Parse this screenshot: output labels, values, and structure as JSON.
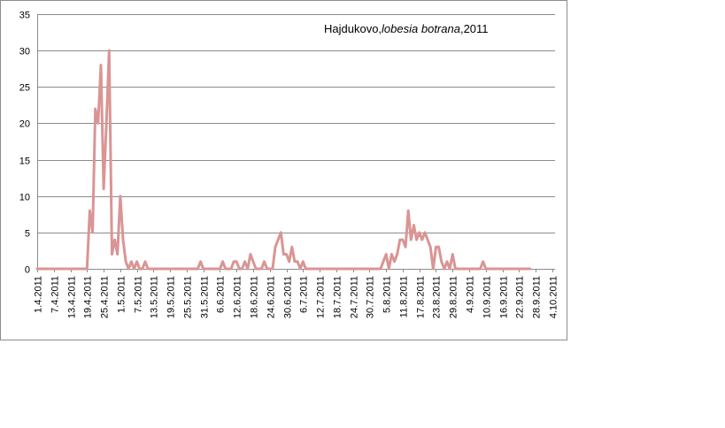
{
  "chart_data": {
    "type": "line",
    "title_parts": {
      "prefix": "Hajdukovo,",
      "species": "lobesia botrana",
      "suffix": ",2011"
    },
    "ylim": [
      0,
      35
    ],
    "y_ticks": [
      0,
      5,
      10,
      15,
      20,
      25,
      30,
      35
    ],
    "grid": "horizontal",
    "legend": "none",
    "line_color": "#d99594",
    "x_start": "1.4.2011",
    "x_end": "5.10.2011",
    "x_tick_labels": [
      "1.4.2011",
      "7.4.2011",
      "13.4.2011",
      "19.4.2011",
      "25.4.2011",
      "1.5.2011",
      "7.5.2011",
      "13.5.2011",
      "19.5.2011",
      "25.5.2011",
      "31.5.2011",
      "6.6.2011",
      "12.6.2011",
      "18.6.2011",
      "24.6.2011",
      "30.6.2011",
      "6.7.2011",
      "12.7.2011",
      "18.7.2011",
      "24.7.2011",
      "30.7.2011",
      "5.8.2011",
      "11.8.2011",
      "17.8.2011",
      "23.8.2011",
      "29.8.2011",
      "4.9.2011",
      "10.9.2011",
      "16.9.2011",
      "22.9.2011",
      "28.9.2011",
      "4.10.2011"
    ],
    "series": [
      {
        "points": [
          [
            "1.4.2011",
            0
          ],
          [
            "19.4.2011",
            0
          ],
          [
            "20.4.2011",
            8
          ],
          [
            "21.4.2011",
            5
          ],
          [
            "22.4.2011",
            22
          ],
          [
            "23.4.2011",
            20
          ],
          [
            "24.4.2011",
            28
          ],
          [
            "25.4.2011",
            11
          ],
          [
            "26.4.2011",
            20
          ],
          [
            "27.4.2011",
            30
          ],
          [
            "28.4.2011",
            2
          ],
          [
            "29.4.2011",
            4
          ],
          [
            "30.4.2011",
            2
          ],
          [
            "1.5.2011",
            10
          ],
          [
            "2.5.2011",
            4
          ],
          [
            "3.5.2011",
            1
          ],
          [
            "4.5.2011",
            0
          ],
          [
            "5.5.2011",
            1
          ],
          [
            "6.5.2011",
            0
          ],
          [
            "7.5.2011",
            1
          ],
          [
            "8.5.2011",
            0
          ],
          [
            "9.5.2011",
            0
          ],
          [
            "10.5.2011",
            1
          ],
          [
            "11.5.2011",
            0
          ],
          [
            "29.5.2011",
            0
          ],
          [
            "30.5.2011",
            1
          ],
          [
            "31.5.2011",
            0
          ],
          [
            "6.6.2011",
            0
          ],
          [
            "7.6.2011",
            1
          ],
          [
            "8.6.2011",
            0
          ],
          [
            "10.6.2011",
            0
          ],
          [
            "11.6.2011",
            1
          ],
          [
            "12.6.2011",
            1
          ],
          [
            "13.6.2011",
            0
          ],
          [
            "14.6.2011",
            0
          ],
          [
            "15.6.2011",
            1
          ],
          [
            "16.6.2011",
            0
          ],
          [
            "17.6.2011",
            2
          ],
          [
            "18.6.2011",
            1
          ],
          [
            "19.6.2011",
            0
          ],
          [
            "20.6.2011",
            0
          ],
          [
            "21.6.2011",
            0
          ],
          [
            "22.6.2011",
            1
          ],
          [
            "23.6.2011",
            0
          ],
          [
            "25.6.2011",
            0
          ],
          [
            "26.6.2011",
            3
          ],
          [
            "27.6.2011",
            4
          ],
          [
            "28.6.2011",
            5
          ],
          [
            "29.6.2011",
            2
          ],
          [
            "30.6.2011",
            2
          ],
          [
            "1.7.2011",
            1
          ],
          [
            "2.7.2011",
            3
          ],
          [
            "3.7.2011",
            1
          ],
          [
            "4.7.2011",
            1
          ],
          [
            "5.7.2011",
            0
          ],
          [
            "6.7.2011",
            1
          ],
          [
            "7.7.2011",
            0
          ],
          [
            "3.8.2011",
            0
          ],
          [
            "4.8.2011",
            1
          ],
          [
            "5.8.2011",
            2
          ],
          [
            "6.8.2011",
            0
          ],
          [
            "7.8.2011",
            2
          ],
          [
            "8.8.2011",
            1
          ],
          [
            "9.8.2011",
            2
          ],
          [
            "10.8.2011",
            4
          ],
          [
            "11.8.2011",
            4
          ],
          [
            "12.8.2011",
            3
          ],
          [
            "13.8.2011",
            8
          ],
          [
            "14.8.2011",
            4
          ],
          [
            "15.8.2011",
            6
          ],
          [
            "16.8.2011",
            4
          ],
          [
            "17.8.2011",
            5
          ],
          [
            "18.8.2011",
            4
          ],
          [
            "19.8.2011",
            5
          ],
          [
            "20.8.2011",
            4
          ],
          [
            "21.8.2011",
            3
          ],
          [
            "22.8.2011",
            0
          ],
          [
            "23.8.2011",
            3
          ],
          [
            "24.8.2011",
            3
          ],
          [
            "25.8.2011",
            1
          ],
          [
            "26.8.2011",
            0
          ],
          [
            "27.8.2011",
            1
          ],
          [
            "28.8.2011",
            0
          ],
          [
            "29.8.2011",
            2
          ],
          [
            "30.8.2011",
            0
          ],
          [
            "8.9.2011",
            0
          ],
          [
            "9.9.2011",
            1
          ],
          [
            "10.9.2011",
            0
          ],
          [
            "26.9.2011",
            0
          ]
        ]
      }
    ]
  }
}
